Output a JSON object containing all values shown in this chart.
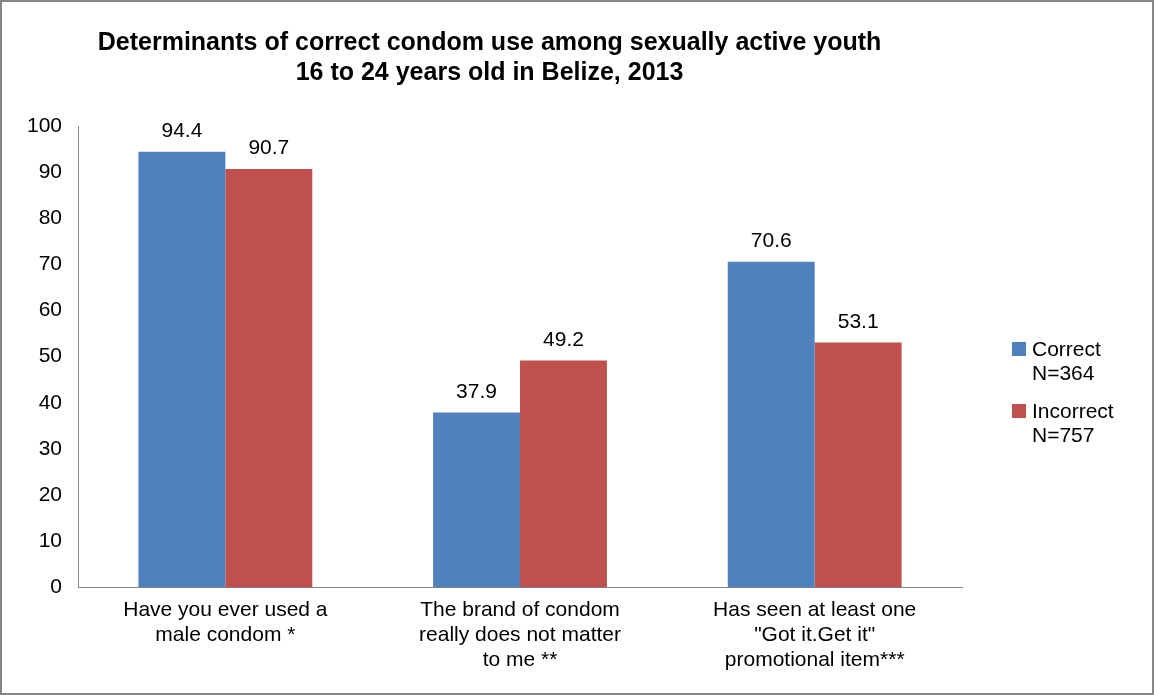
{
  "chart_data": {
    "type": "bar",
    "title": "Determinants of correct condom use among sexually active youth\n16 to 24 years old in Belize, 2013",
    "categories": [
      "Have you ever used a male condom *",
      "The brand of condom really does not matter to me **",
      "Has seen at least one \"Got it.Get it\" promotional item***"
    ],
    "series": [
      {
        "name": "Correct N=364",
        "color": "#4f81bd",
        "values": [
          94.4,
          37.9,
          70.6
        ]
      },
      {
        "name": "Incorrect N=757",
        "color": "#c0504d",
        "values": [
          90.7,
          49.2,
          53.1
        ]
      }
    ],
    "ylim": [
      0,
      100
    ],
    "yticks": [
      0,
      10,
      20,
      30,
      40,
      50,
      60,
      70,
      80,
      90,
      100
    ],
    "grid": false,
    "legend": "right",
    "data_labels": true
  }
}
